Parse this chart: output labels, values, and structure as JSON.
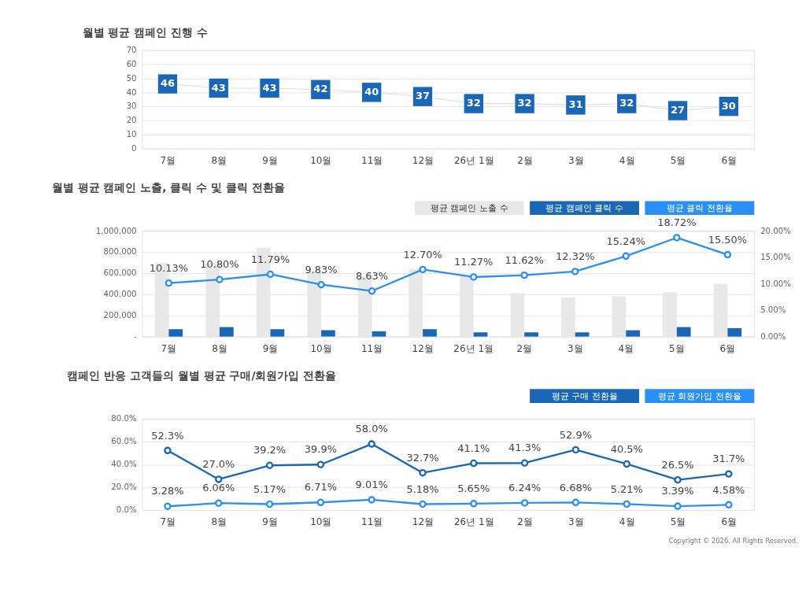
{
  "chart_data": [
    {
      "type": "line",
      "title": "월별 평균 캠페인 진행 수",
      "categories": [
        "7월",
        "8월",
        "9월",
        "10월",
        "11월",
        "12월",
        "26년 1월",
        "2월",
        "3월",
        "4월",
        "5월",
        "6월"
      ],
      "series": [
        {
          "color": "#1a67b8",
          "values": [
            46,
            43,
            43,
            42,
            40,
            37,
            32,
            32,
            31,
            32,
            27,
            30
          ]
        }
      ],
      "ylim": [
        0,
        70
      ],
      "yticks": [
        0,
        10,
        20,
        30,
        40,
        50,
        60,
        70
      ],
      "grid": "y",
      "marker": "square",
      "data_labels": true
    },
    {
      "type": "bar",
      "title": "월별 평균 캠페인 노출, 클릭 수 및 클릭 전환율",
      "categories": [
        "7월",
        "8월",
        "9월",
        "10월",
        "11월",
        "12월",
        "26년 1월",
        "2월",
        "3월",
        "4월",
        "5월",
        "6월"
      ],
      "series": [
        {
          "name": "평균 캠페인 노출 수",
          "color": "#e8e8e8",
          "values": [
            700000,
            700000,
            840000,
            620000,
            560000,
            640000,
            570000,
            410000,
            370000,
            380000,
            420000,
            500000
          ]
        },
        {
          "name": "평균 캠페인 클릭 수",
          "color": "#1a67b8",
          "values": [
            70000,
            90000,
            70000,
            60000,
            50000,
            70000,
            40000,
            40000,
            40000,
            60000,
            90000,
            80000
          ]
        },
        {
          "name": "평균 클릭 전환율",
          "color": "#2a8ff7",
          "type": "line",
          "axis": "y2",
          "marker": "circle",
          "values": [
            10.13,
            10.8,
            11.79,
            9.83,
            8.63,
            12.7,
            11.27,
            11.62,
            12.32,
            15.24,
            18.72,
            15.5
          ],
          "value_labels": [
            "10.13%",
            "10.80%",
            "11.79%",
            "9.83%",
            "8.63%",
            "12.70%",
            "11.27%",
            "11.62%",
            "12.32%",
            "15.24%",
            "18.72%",
            "15.50%"
          ]
        }
      ],
      "ylim": [
        0,
        1000000
      ],
      "yticks": [
        {
          "value": 0,
          "label": "-"
        },
        {
          "value": 200000,
          "label": "200,000"
        },
        {
          "value": 400000,
          "label": "400,000"
        },
        {
          "value": 600000,
          "label": "600,000"
        },
        {
          "value": 800000,
          "label": "800,000"
        },
        {
          "value": 1000000,
          "label": "1,000,000"
        }
      ],
      "y2lim": [
        0,
        20
      ],
      "y2ticks": [
        {
          "value": 0,
          "label": "0.00%"
        },
        {
          "value": 5,
          "label": "5.00%"
        },
        {
          "value": 10,
          "label": "10.00%"
        },
        {
          "value": 15,
          "label": "15.00%"
        },
        {
          "value": 20,
          "label": "20.00%"
        }
      ],
      "grid": "y",
      "legend": "top right"
    },
    {
      "type": "line",
      "title": "캠페인 반응 고객들의 월별 평균 구매/회원가입 전환율",
      "categories": [
        "7월",
        "8월",
        "9월",
        "10월",
        "11월",
        "12월",
        "26년 1월",
        "2월",
        "3월",
        "4월",
        "5월",
        "6월"
      ],
      "series": [
        {
          "name": "평균 구매 전환율",
          "color": "#1a67b8",
          "values": [
            52.3,
            27.0,
            39.2,
            39.9,
            58.0,
            32.7,
            41.1,
            41.3,
            52.9,
            40.5,
            26.5,
            31.7
          ],
          "value_labels": [
            "52.3%",
            "27.0%",
            "39.2%",
            "39.9%",
            "58.0%",
            "32.7%",
            "41.1%",
            "41.3%",
            "52.9%",
            "40.5%",
            "26.5%",
            "31.7%"
          ]
        },
        {
          "name": "평균 회원가입 전환율",
          "color": "#2a8ff7",
          "values": [
            3.28,
            6.06,
            5.17,
            6.71,
            9.01,
            5.18,
            5.65,
            6.24,
            6.68,
            5.21,
            3.39,
            4.58
          ],
          "value_labels": [
            "3.28%",
            "6.06%",
            "5.17%",
            "6.71%",
            "9.01%",
            "5.18%",
            "5.65%",
            "6.24%",
            "6.68%",
            "5.21%",
            "3.39%",
            "4.58%"
          ]
        }
      ],
      "ylim": [
        0,
        80
      ],
      "yticks": [
        {
          "value": 0,
          "label": "0.0%"
        },
        {
          "value": 20,
          "label": "20.0%"
        },
        {
          "value": 40,
          "label": "40.0%"
        },
        {
          "value": 60,
          "label": "60.0%"
        },
        {
          "value": 80,
          "label": "80.0%"
        }
      ],
      "grid": "y",
      "marker": "circle",
      "legend": "top right",
      "annotations": [
        "Copyright © 2026. All Rights Reserved."
      ]
    }
  ]
}
